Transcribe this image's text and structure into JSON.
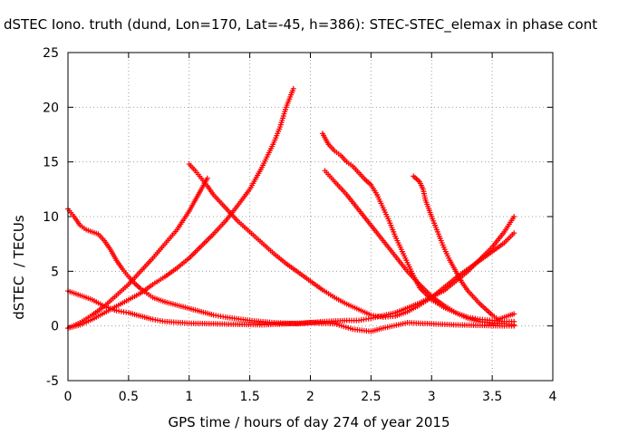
{
  "chart_data": {
    "type": "scatter",
    "title": "dSTEC Iono. truth (dund, Lon=170, Lat=-45, h=386): STEC-STEC_elemax in phase cont",
    "xlabel": "GPS time / hours of day 274 of year 2015",
    "ylabel": "dSTEC  / TECUs",
    "xlim": [
      0,
      4
    ],
    "ylim": [
      -5,
      25
    ],
    "xticks": [
      "0",
      "0.5",
      "1",
      "1.5",
      "2",
      "2.5",
      "3",
      "3.5",
      "4"
    ],
    "yticks": [
      "-5",
      "0",
      "5",
      "10",
      "15",
      "20",
      "25"
    ],
    "grid": true,
    "legend": "none",
    "marker": "+",
    "color": "#ff0000",
    "series": [
      {
        "points": [
          [
            0.0,
            10.7
          ],
          [
            0.05,
            10.0
          ],
          [
            0.1,
            9.2
          ],
          [
            0.15,
            8.8
          ],
          [
            0.2,
            8.6
          ],
          [
            0.25,
            8.4
          ],
          [
            0.3,
            7.8
          ],
          [
            0.35,
            7.0
          ],
          [
            0.4,
            6.0
          ],
          [
            0.45,
            5.2
          ],
          [
            0.5,
            4.5
          ],
          [
            0.55,
            3.9
          ],
          [
            0.6,
            3.4
          ],
          [
            0.65,
            3.0
          ],
          [
            0.7,
            2.6
          ],
          [
            0.8,
            2.2
          ],
          [
            0.9,
            1.9
          ],
          [
            1.0,
            1.6
          ],
          [
            1.1,
            1.3
          ],
          [
            1.2,
            1.0
          ],
          [
            1.3,
            0.8
          ],
          [
            1.5,
            0.5
          ],
          [
            1.7,
            0.3
          ],
          [
            1.9,
            0.2
          ],
          [
            2.1,
            0.4
          ],
          [
            2.3,
            0.5
          ],
          [
            2.4,
            0.5
          ],
          [
            2.5,
            0.7
          ],
          [
            2.7,
            1.2
          ],
          [
            2.9,
            2.1
          ],
          [
            3.1,
            3.2
          ],
          [
            3.3,
            5.0
          ],
          [
            3.5,
            7.2
          ],
          [
            3.6,
            8.6
          ],
          [
            3.68,
            10.0
          ]
        ]
      },
      {
        "points": [
          [
            0.0,
            3.2
          ],
          [
            0.1,
            2.8
          ],
          [
            0.2,
            2.4
          ],
          [
            0.3,
            1.8
          ],
          [
            0.4,
            1.4
          ],
          [
            0.5,
            1.2
          ],
          [
            0.6,
            0.9
          ],
          [
            0.7,
            0.6
          ],
          [
            0.8,
            0.4
          ],
          [
            1.0,
            0.25
          ],
          [
            1.2,
            0.2
          ],
          [
            1.4,
            0.15
          ],
          [
            1.6,
            0.1
          ],
          [
            1.8,
            0.2
          ],
          [
            2.0,
            0.3
          ],
          [
            2.2,
            0.2
          ],
          [
            2.35,
            -0.3
          ],
          [
            2.5,
            -0.5
          ],
          [
            2.6,
            -0.2
          ],
          [
            2.8,
            0.3
          ],
          [
            3.0,
            0.2
          ],
          [
            3.2,
            0.1
          ],
          [
            3.4,
            0.05
          ],
          [
            3.6,
            0.0
          ],
          [
            3.68,
            0.0
          ]
        ]
      },
      {
        "points": [
          [
            0.0,
            -0.2
          ],
          [
            0.1,
            0.3
          ],
          [
            0.2,
            1.0
          ],
          [
            0.3,
            1.8
          ],
          [
            0.4,
            2.8
          ],
          [
            0.5,
            3.8
          ],
          [
            0.6,
            5.0
          ],
          [
            0.7,
            6.2
          ],
          [
            0.8,
            7.5
          ],
          [
            0.9,
            8.8
          ],
          [
            1.0,
            10.5
          ],
          [
            1.05,
            11.5
          ],
          [
            1.1,
            12.5
          ],
          [
            1.15,
            13.5
          ]
        ]
      },
      {
        "points": [
          [
            0.0,
            -0.2
          ],
          [
            0.1,
            0.1
          ],
          [
            0.2,
            0.6
          ],
          [
            0.3,
            1.2
          ],
          [
            0.4,
            1.8
          ],
          [
            0.5,
            2.4
          ],
          [
            0.6,
            3.0
          ],
          [
            0.7,
            3.8
          ],
          [
            0.8,
            4.5
          ],
          [
            0.9,
            5.3
          ],
          [
            1.0,
            6.2
          ],
          [
            1.1,
            7.3
          ],
          [
            1.2,
            8.4
          ],
          [
            1.3,
            9.6
          ],
          [
            1.4,
            11.0
          ],
          [
            1.5,
            12.5
          ],
          [
            1.6,
            14.5
          ],
          [
            1.7,
            16.8
          ],
          [
            1.75,
            18.2
          ],
          [
            1.8,
            20.0
          ],
          [
            1.86,
            21.7
          ]
        ]
      },
      {
        "points": [
          [
            1.0,
            14.8
          ],
          [
            1.05,
            14.2
          ],
          [
            1.1,
            13.5
          ],
          [
            1.15,
            12.8
          ],
          [
            1.2,
            12.0
          ],
          [
            1.3,
            10.8
          ],
          [
            1.4,
            9.6
          ],
          [
            1.5,
            8.6
          ],
          [
            1.6,
            7.6
          ],
          [
            1.7,
            6.6
          ],
          [
            1.8,
            5.7
          ],
          [
            1.9,
            4.9
          ],
          [
            2.0,
            4.1
          ],
          [
            2.1,
            3.3
          ],
          [
            2.2,
            2.6
          ],
          [
            2.3,
            2.0
          ],
          [
            2.4,
            1.5
          ],
          [
            2.5,
            1.0
          ],
          [
            2.6,
            0.8
          ],
          [
            2.7,
            0.9
          ],
          [
            2.8,
            1.3
          ],
          [
            2.9,
            1.9
          ],
          [
            3.0,
            2.6
          ],
          [
            3.1,
            3.5
          ],
          [
            3.2,
            4.4
          ],
          [
            3.3,
            5.2
          ],
          [
            3.4,
            6.0
          ],
          [
            3.5,
            6.8
          ],
          [
            3.6,
            7.6
          ],
          [
            3.68,
            8.5
          ]
        ]
      },
      {
        "points": [
          [
            2.1,
            17.6
          ],
          [
            2.15,
            16.6
          ],
          [
            2.2,
            16.0
          ],
          [
            2.25,
            15.6
          ],
          [
            2.3,
            15.0
          ],
          [
            2.35,
            14.6
          ],
          [
            2.4,
            14.0
          ],
          [
            2.45,
            13.4
          ],
          [
            2.5,
            12.9
          ],
          [
            2.55,
            12.0
          ],
          [
            2.6,
            10.8
          ],
          [
            2.65,
            9.6
          ],
          [
            2.7,
            8.2
          ],
          [
            2.75,
            7.0
          ],
          [
            2.8,
            5.8
          ],
          [
            2.85,
            4.6
          ],
          [
            2.9,
            3.5
          ],
          [
            3.0,
            2.4
          ],
          [
            3.1,
            1.7
          ],
          [
            3.2,
            1.2
          ],
          [
            3.3,
            0.8
          ],
          [
            3.4,
            0.6
          ],
          [
            3.5,
            0.5
          ],
          [
            3.6,
            0.4
          ],
          [
            3.68,
            0.4
          ]
        ]
      },
      {
        "points": [
          [
            2.12,
            14.2
          ],
          [
            2.2,
            13.2
          ],
          [
            2.3,
            12.0
          ],
          [
            2.4,
            10.6
          ],
          [
            2.5,
            9.2
          ],
          [
            2.6,
            7.8
          ],
          [
            2.7,
            6.4
          ],
          [
            2.8,
            5.0
          ],
          [
            2.9,
            3.8
          ],
          [
            3.0,
            2.7
          ],
          [
            3.1,
            1.9
          ],
          [
            3.2,
            1.2
          ],
          [
            3.3,
            0.7
          ],
          [
            3.4,
            0.4
          ],
          [
            3.5,
            0.3
          ],
          [
            3.6,
            0.2
          ],
          [
            3.68,
            0.1
          ]
        ]
      },
      {
        "points": [
          [
            2.85,
            13.7
          ],
          [
            2.9,
            13.2
          ],
          [
            2.93,
            12.5
          ],
          [
            2.95,
            11.5
          ],
          [
            3.0,
            10.0
          ],
          [
            3.05,
            8.6
          ],
          [
            3.1,
            7.2
          ],
          [
            3.15,
            6.0
          ],
          [
            3.2,
            5.0
          ],
          [
            3.25,
            4.0
          ],
          [
            3.3,
            3.2
          ],
          [
            3.35,
            2.6
          ],
          [
            3.4,
            2.0
          ],
          [
            3.45,
            1.5
          ],
          [
            3.5,
            1.0
          ],
          [
            3.55,
            0.6
          ],
          [
            3.6,
            0.8
          ],
          [
            3.65,
            1.0
          ],
          [
            3.68,
            1.1
          ]
        ]
      }
    ]
  }
}
